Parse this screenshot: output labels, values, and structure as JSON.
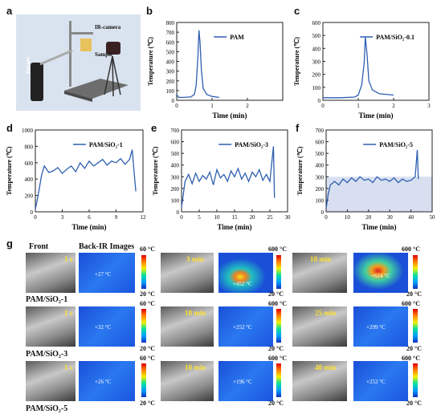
{
  "panels": {
    "a": "a",
    "b": "b",
    "c": "c",
    "d": "d",
    "e": "e",
    "f": "f",
    "g": "g"
  },
  "panel_a": {
    "ir_camera": "IR-camera",
    "sample": "Sample",
    "butane": "Butane"
  },
  "chart_data": [
    {
      "id": "b",
      "type": "line",
      "legend": "PAM",
      "xlabel": "Time (min)",
      "ylabel": "Temperature (℃)",
      "xlim": [
        0,
        3
      ],
      "ylim": [
        0,
        800
      ],
      "xticks": [
        0,
        1,
        2
      ],
      "yticks": [
        0,
        100,
        200,
        300,
        400,
        500,
        600,
        700,
        800
      ],
      "x": [
        0,
        0.05,
        0.2,
        0.4,
        0.5,
        0.55,
        0.6,
        0.63,
        0.66,
        0.7,
        0.75,
        0.85,
        1.0,
        1.2
      ],
      "y": [
        60,
        30,
        30,
        35,
        60,
        150,
        450,
        720,
        600,
        300,
        120,
        60,
        40,
        30
      ]
    },
    {
      "id": "c",
      "type": "line",
      "legend": "PAM/SiO₂-0.1",
      "xlabel": "Time (min)",
      "ylabel": "Temperature (℃)",
      "xlim": [
        0,
        3
      ],
      "ylim": [
        0,
        600
      ],
      "xticks": [
        0,
        1,
        2,
        3
      ],
      "yticks": [
        0,
        100,
        200,
        300,
        400,
        500,
        600
      ],
      "x": [
        0,
        0.5,
        0.9,
        1.0,
        1.1,
        1.17,
        1.2,
        1.25,
        1.3,
        1.4,
        1.6,
        2.0
      ],
      "y": [
        20,
        20,
        25,
        40,
        120,
        300,
        490,
        350,
        150,
        80,
        50,
        40
      ]
    },
    {
      "id": "d",
      "type": "line",
      "legend": "PAM/SiO₂-1",
      "xlabel": "Time (min)",
      "ylabel": "Temperature (℃)",
      "xlim": [
        0,
        12
      ],
      "ylim": [
        0,
        1000
      ],
      "xticks": [
        0,
        3,
        6,
        9,
        12
      ],
      "yticks": [
        0,
        200,
        400,
        600,
        800,
        1000
      ],
      "x": [
        0,
        0.3,
        0.7,
        1,
        1.5,
        2,
        2.5,
        3,
        3.5,
        4,
        4.5,
        5,
        5.5,
        6,
        6.5,
        7,
        7.5,
        8,
        8.5,
        9,
        9.5,
        10,
        10.5,
        10.8,
        11,
        11.2
      ],
      "y": [
        30,
        200,
        450,
        560,
        480,
        500,
        540,
        470,
        520,
        560,
        490,
        600,
        530,
        620,
        560,
        600,
        640,
        570,
        620,
        600,
        650,
        580,
        640,
        760,
        500,
        250
      ]
    },
    {
      "id": "e",
      "type": "line",
      "legend": "PAM/SiO₂-3",
      "xlabel": "Time (min)",
      "ylabel": "Temperature (℃)",
      "xlim": [
        0,
        30
      ],
      "ylim": [
        0,
        700
      ],
      "xticks": [
        0,
        5,
        10,
        15,
        20,
        25,
        30
      ],
      "yticks": [
        0,
        100,
        200,
        300,
        400,
        500,
        600,
        700
      ],
      "x": [
        0,
        0.5,
        1,
        2,
        3,
        4,
        5,
        6,
        7,
        8,
        9,
        10,
        11,
        12,
        13,
        14,
        15,
        16,
        17,
        18,
        19,
        20,
        21,
        22,
        23,
        24,
        25,
        26,
        26.3
      ],
      "y": [
        40,
        150,
        260,
        320,
        240,
        330,
        260,
        310,
        280,
        340,
        230,
        360,
        290,
        320,
        260,
        350,
        300,
        370,
        280,
        330,
        260,
        340,
        300,
        360,
        270,
        320,
        260,
        560,
        120
      ]
    },
    {
      "id": "f",
      "type": "line",
      "legend": "PAM/SiO₂-5",
      "xlabel": "Time (min)",
      "ylabel": "Temperature (℃)",
      "xlim": [
        0,
        50
      ],
      "ylim": [
        0,
        700
      ],
      "xticks": [
        0,
        10,
        20,
        30,
        40,
        50
      ],
      "yticks": [
        0,
        100,
        200,
        300,
        400,
        500,
        600,
        700
      ],
      "x": [
        0,
        1,
        2,
        4,
        6,
        8,
        10,
        12,
        14,
        16,
        18,
        20,
        22,
        24,
        26,
        28,
        30,
        32,
        34,
        36,
        38,
        40,
        42,
        43,
        43.5
      ],
      "y": [
        30,
        150,
        230,
        260,
        230,
        280,
        250,
        290,
        260,
        300,
        270,
        280,
        250,
        300,
        270,
        280,
        260,
        290,
        250,
        280,
        260,
        270,
        300,
        530,
        280
      ]
    }
  ],
  "panel_g": {
    "front": "Front",
    "back_ir": "Back-IR Images",
    "rows": [
      {
        "label": "PAM/SiO₂-1",
        "t1": "1 s",
        "ir1": "+27 °C",
        "t2": "3 min",
        "ir2": "+452 °C",
        "t3": "10 min",
        "ir3": "+624 °C",
        "s1": {
          "top": "60 °C",
          "bottom": "20 °C"
        },
        "s2": {
          "top": "600 °C",
          "bottom": "20 °C"
        },
        "s3": {
          "top": "600 °C",
          "bottom": "20 °C"
        }
      },
      {
        "label": "PAM/SiO₂-3",
        "t1": "1 s",
        "ir1": "+32 °C",
        "t2": "10 min",
        "ir2": "+252 °C",
        "t3": "25 min",
        "ir3": "+299 °C",
        "s1": {
          "top": "60 °C",
          "bottom": "20 °C"
        },
        "s2": {
          "top": "600 °C",
          "bottom": "20 °C"
        },
        "s3": {
          "top": "600 °C",
          "bottom": "20 °C"
        }
      },
      {
        "label": "PAM/SiO₂-5",
        "t1": "1 s",
        "ir1": "+26 °C",
        "t2": "10 min",
        "ir2": "+196 °C",
        "t3": "40 min",
        "ir3": "+252 °C",
        "s1": {
          "top": "60 °C",
          "bottom": "20 °C"
        },
        "s2": {
          "top": "600 °C",
          "bottom": "20 °C"
        },
        "s3": {
          "top": "600 °C",
          "bottom": "20 °C"
        }
      }
    ]
  },
  "colors": {
    "line": "#2e5fb0",
    "shade": "#d7dff0"
  }
}
